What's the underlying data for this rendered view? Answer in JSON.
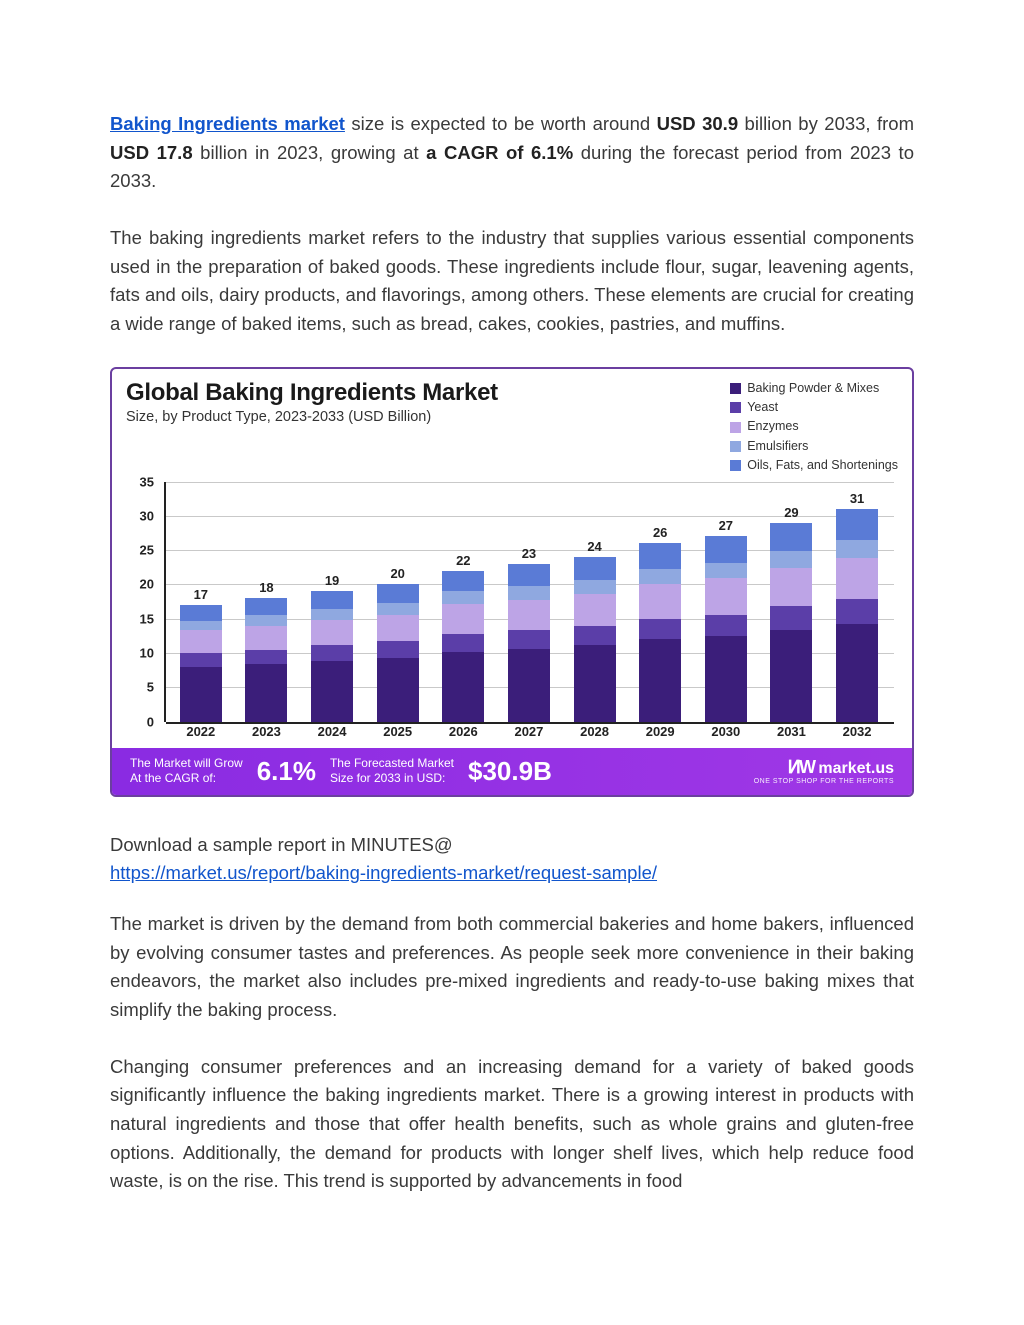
{
  "intro": {
    "link_text": "Baking Ingredients market",
    "t1": " size is expected to be worth around ",
    "b1": "USD 30.9",
    "t2": " billion by 2033, from ",
    "b2": "USD 17.8",
    "t3": " billion in 2023, growing at ",
    "b3": "a CAGR of 6.1%",
    "t4": " during the forecast period from 2023 to 2033."
  },
  "para2": "The baking ingredients market refers to the industry that supplies various essential components used in the preparation of baked goods. These ingredients include flour, sugar, leavening agents, fats and oils, dairy products, and flavorings, among others. These elements are crucial for creating a wide range of baked items, such as bread, cakes, cookies, pastries, and muffins.",
  "download_label": "Download a sample report in MINUTES@",
  "download_url": "https://market.us/report/baking-ingredients-market/request-sample/",
  "para3": "The market is driven by the demand from both commercial bakeries and home bakers, influenced by evolving consumer tastes and preferences. As people seek more convenience in their baking endeavors, the market also includes pre-mixed ingredients and ready-to-use baking mixes that simplify the baking process.",
  "para4": "Changing consumer preferences and an increasing demand for a variety of baked goods significantly influence the baking ingredients market. There is a growing interest in products with natural ingredients and those that offer health benefits, such as whole grains and gluten-free options. Additionally, the demand for products with longer shelf lives, which help reduce food waste, is on the rise. This trend is supported by advancements in food",
  "chart": {
    "title": "Global Baking Ingredients Market",
    "subtitle": "Size, by Product Type, 2023-2033 (USD Billion)",
    "background_color": "#ffffff",
    "border_color": "#6b3fa0",
    "ymax": 35,
    "yticks": [
      0,
      5,
      10,
      15,
      20,
      25,
      30,
      35
    ],
    "legend": [
      {
        "label": "Baking Powder & Mixes",
        "color": "#3b1e7a"
      },
      {
        "label": "Yeast",
        "color": "#5b3ea8"
      },
      {
        "label": "Enzymes",
        "color": "#bda4e6"
      },
      {
        "label": "Emulsifiers",
        "color": "#8fa8e0"
      },
      {
        "label": "Oils, Fats, and Shortenings",
        "color": "#5a7bd6"
      }
    ],
    "segment_colors": [
      "#3b1e7a",
      "#5b3ea8",
      "#bda4e6",
      "#8fa8e0",
      "#5a7bd6"
    ],
    "categories": [
      "2022",
      "2023",
      "2024",
      "2025",
      "2026",
      "2027",
      "2028",
      "2029",
      "2030",
      "2031",
      "2032"
    ],
    "totals": [
      17,
      18,
      19,
      20,
      22,
      23,
      24,
      26,
      27,
      29,
      31
    ],
    "series": [
      [
        8.0,
        8.4,
        8.9,
        9.3,
        10.2,
        10.6,
        11.1,
        12.0,
        12.5,
        13.4,
        14.3
      ],
      [
        2.0,
        2.1,
        2.2,
        2.4,
        2.6,
        2.7,
        2.8,
        3.0,
        3.1,
        3.4,
        3.6
      ],
      [
        3.3,
        3.5,
        3.7,
        3.9,
        4.3,
        4.5,
        4.7,
        5.1,
        5.3,
        5.6,
        6.0
      ],
      [
        1.4,
        1.5,
        1.6,
        1.7,
        1.9,
        2.0,
        2.0,
        2.2,
        2.3,
        2.5,
        2.6
      ],
      [
        2.3,
        2.5,
        2.6,
        2.7,
        3.0,
        3.2,
        3.4,
        3.7,
        3.8,
        4.1,
        4.5
      ]
    ],
    "footer": {
      "cagr_label1": "The Market will Grow",
      "cagr_label2": "At the CAGR of:",
      "cagr_value": "6.1%",
      "size_label1": "The Forecasted Market",
      "size_label2": "Size for 2033 in USD:",
      "size_value": "$30.9B",
      "logo_text": "market.us",
      "logo_sub": "ONE STOP SHOP FOR THE REPORTS"
    }
  }
}
